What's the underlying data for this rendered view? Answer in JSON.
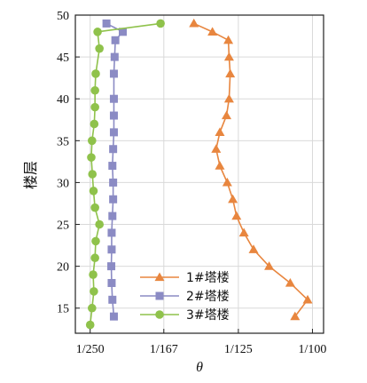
{
  "chart_data": {
    "type": "line",
    "xlabel": "θ",
    "ylabel": "楼层",
    "xlim": [
      0.0036,
      0.0103
    ],
    "ylim": [
      12,
      50
    ],
    "x_ticks": [
      {
        "value": 0.004,
        "label": "1/250"
      },
      {
        "value": 0.005988,
        "label": "1/167"
      },
      {
        "value": 0.008,
        "label": "1/125"
      },
      {
        "value": 0.01,
        "label": "1/100"
      }
    ],
    "y_ticks": [
      15,
      20,
      25,
      30,
      35,
      40,
      45,
      50
    ],
    "grid": true,
    "legend_placement": "lower-center",
    "series": [
      {
        "name": "1#塔楼",
        "color": "#e8863f",
        "marker": "triangle",
        "points": [
          {
            "x": 0.00953,
            "y": 14
          },
          {
            "x": 0.00987,
            "y": 16
          },
          {
            "x": 0.0094,
            "y": 18
          },
          {
            "x": 0.00883,
            "y": 20
          },
          {
            "x": 0.00841,
            "y": 22
          },
          {
            "x": 0.00815,
            "y": 24
          },
          {
            "x": 0.00795,
            "y": 26
          },
          {
            "x": 0.00785,
            "y": 28
          },
          {
            "x": 0.0077,
            "y": 30
          },
          {
            "x": 0.0075,
            "y": 32
          },
          {
            "x": 0.0074,
            "y": 34
          },
          {
            "x": 0.0075,
            "y": 36
          },
          {
            "x": 0.00768,
            "y": 38
          },
          {
            "x": 0.00775,
            "y": 40
          },
          {
            "x": 0.00778,
            "y": 43
          },
          {
            "x": 0.00775,
            "y": 45
          },
          {
            "x": 0.00773,
            "y": 47
          },
          {
            "x": 0.0073,
            "y": 48
          },
          {
            "x": 0.0068,
            "y": 49
          }
        ]
      },
      {
        "name": "2#塔楼",
        "color": "#8b8bc4",
        "marker": "square",
        "points": [
          {
            "x": 0.00464,
            "y": 14
          },
          {
            "x": 0.0046,
            "y": 16
          },
          {
            "x": 0.00458,
            "y": 18
          },
          {
            "x": 0.00457,
            "y": 20
          },
          {
            "x": 0.00458,
            "y": 22
          },
          {
            "x": 0.00458,
            "y": 24
          },
          {
            "x": 0.0046,
            "y": 26
          },
          {
            "x": 0.00462,
            "y": 28
          },
          {
            "x": 0.00462,
            "y": 30
          },
          {
            "x": 0.0046,
            "y": 32
          },
          {
            "x": 0.00462,
            "y": 34
          },
          {
            "x": 0.00464,
            "y": 36
          },
          {
            "x": 0.00464,
            "y": 38
          },
          {
            "x": 0.00464,
            "y": 40
          },
          {
            "x": 0.00464,
            "y": 43
          },
          {
            "x": 0.00466,
            "y": 45
          },
          {
            "x": 0.00468,
            "y": 47
          },
          {
            "x": 0.00488,
            "y": 48
          },
          {
            "x": 0.00444,
            "y": 49
          }
        ]
      },
      {
        "name": "3#塔楼",
        "color": "#8fc24b",
        "marker": "circle",
        "points": [
          {
            "x": 0.004,
            "y": 13
          },
          {
            "x": 0.00405,
            "y": 15
          },
          {
            "x": 0.0041,
            "y": 17
          },
          {
            "x": 0.00408,
            "y": 19
          },
          {
            "x": 0.00413,
            "y": 21
          },
          {
            "x": 0.00415,
            "y": 23
          },
          {
            "x": 0.00425,
            "y": 25
          },
          {
            "x": 0.00413,
            "y": 27
          },
          {
            "x": 0.00409,
            "y": 29
          },
          {
            "x": 0.00406,
            "y": 31
          },
          {
            "x": 0.00403,
            "y": 33
          },
          {
            "x": 0.00405,
            "y": 35
          },
          {
            "x": 0.00411,
            "y": 37
          },
          {
            "x": 0.00413,
            "y": 39
          },
          {
            "x": 0.00413,
            "y": 41
          },
          {
            "x": 0.00415,
            "y": 43
          },
          {
            "x": 0.00425,
            "y": 46
          },
          {
            "x": 0.0042,
            "y": 48
          },
          {
            "x": 0.0059,
            "y": 49
          }
        ]
      }
    ]
  }
}
